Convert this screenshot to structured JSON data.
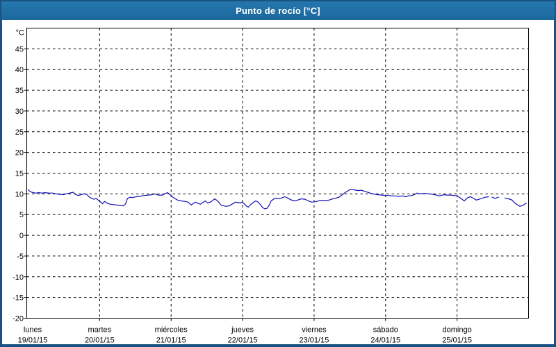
{
  "window": {
    "title": "Punto de rocío [°C]"
  },
  "colors": {
    "frame": "#1A5282",
    "titlebar": "#1E6CA2",
    "title_text": "#FFFFFF",
    "plot_background": "#FFFFFF",
    "axis": "#000000",
    "grid": "#000000",
    "line": "#1212B4"
  },
  "chart_data": {
    "type": "line",
    "title": "Punto de rocío [°C]",
    "ylabel": "°C",
    "ylim": [
      -20,
      50
    ],
    "y_ticks": [
      45,
      40,
      35,
      30,
      25,
      20,
      15,
      10,
      5,
      0,
      -5,
      -10,
      -15,
      -20
    ],
    "grid": "dashed",
    "legend_position": "none",
    "x_days": [
      {
        "name": "lunes",
        "date": "19/01/15"
      },
      {
        "name": "martes",
        "date": "20/01/15"
      },
      {
        "name": "miércoles",
        "date": "21/01/15"
      },
      {
        "name": "jueves",
        "date": "22/01/15"
      },
      {
        "name": "viernes",
        "date": "23/01/15"
      },
      {
        "name": "sábado",
        "date": "24/01/15"
      },
      {
        "name": "domingo",
        "date": "25/01/15"
      }
    ],
    "series": [
      {
        "name": "Punto de rocío",
        "unit": "°C",
        "x_unit": "days since 19/01/15 00:00",
        "color": "#1212B4",
        "segments": [
          [
            [
              0,
              11
            ],
            [
              0.01,
              10.8
            ],
            [
              0.05,
              10.4
            ],
            [
              0.1,
              10.2
            ],
            [
              0.15,
              10.3
            ],
            [
              0.19,
              10.2
            ],
            [
              0.24,
              10.3
            ],
            [
              0.29,
              10.2
            ],
            [
              0.34,
              10.2
            ],
            [
              0.39,
              10
            ],
            [
              0.44,
              9.9
            ],
            [
              0.49,
              9.8
            ],
            [
              0.53,
              10
            ],
            [
              0.58,
              10.2
            ],
            [
              0.63,
              10.4
            ],
            [
              0.66,
              9.9
            ],
            [
              0.7,
              9.6
            ],
            [
              0.74,
              9.8
            ],
            [
              0.78,
              10
            ],
            [
              0.82,
              9.9
            ],
            [
              0.85,
              9.3
            ],
            [
              0.88,
              9
            ],
            [
              0.92,
              8.7
            ],
            [
              0.95,
              8.9
            ],
            [
              0.98,
              8.5
            ],
            [
              1.01,
              8.1
            ],
            [
              1.04,
              7.6
            ],
            [
              1.07,
              8.2
            ],
            [
              1.1,
              7.8
            ],
            [
              1.15,
              7.5
            ],
            [
              1.2,
              7.4
            ],
            [
              1.24,
              7.3
            ],
            [
              1.29,
              7.2
            ],
            [
              1.33,
              7.1
            ],
            [
              1.36,
              7.5
            ],
            [
              1.39,
              8.9
            ],
            [
              1.43,
              9.2
            ],
            [
              1.46,
              9.1
            ],
            [
              1.51,
              9.3
            ],
            [
              1.56,
              9.4
            ],
            [
              1.62,
              9.6
            ],
            [
              1.68,
              9.7
            ],
            [
              1.73,
              9.8
            ],
            [
              1.77,
              10
            ],
            [
              1.82,
              9.7
            ],
            [
              1.88,
              9.7
            ],
            [
              1.92,
              10.1
            ],
            [
              1.95,
              10.3
            ],
            [
              1.98,
              9.9
            ],
            [
              2.01,
              9.4
            ],
            [
              2.04,
              9
            ],
            [
              2.09,
              8.5
            ],
            [
              2.14,
              8.3
            ],
            [
              2.19,
              8.2
            ],
            [
              2.24,
              8
            ],
            [
              2.28,
              7.3
            ],
            [
              2.31,
              7.7
            ],
            [
              2.34,
              8
            ],
            [
              2.38,
              7.7
            ],
            [
              2.41,
              7.5
            ],
            [
              2.44,
              7.9
            ],
            [
              2.48,
              8.3
            ],
            [
              2.51,
              7.8
            ],
            [
              2.56,
              8.1
            ],
            [
              2.61,
              8.8
            ],
            [
              2.65,
              8.3
            ],
            [
              2.7,
              7.3
            ],
            [
              2.74,
              7.1
            ],
            [
              2.77,
              7
            ],
            [
              2.81,
              7.1
            ],
            [
              2.85,
              7.5
            ],
            [
              2.9,
              8
            ],
            [
              2.94,
              7.9
            ],
            [
              2.97,
              7.8
            ],
            [
              2.99,
              8
            ],
            [
              3.02,
              7.7
            ],
            [
              3.05,
              7.1
            ],
            [
              3.08,
              6.8
            ],
            [
              3.11,
              7.4
            ],
            [
              3.15,
              7.9
            ],
            [
              3.18,
              8.3
            ],
            [
              3.21,
              8.1
            ],
            [
              3.25,
              7.4
            ],
            [
              3.28,
              6.7
            ],
            [
              3.31,
              6.4
            ],
            [
              3.34,
              6.5
            ],
            [
              3.37,
              7.2
            ],
            [
              3.4,
              8.3
            ],
            [
              3.44,
              8.8
            ],
            [
              3.48,
              8.9
            ],
            [
              3.52,
              8.8
            ],
            [
              3.56,
              9.1
            ],
            [
              3.59,
              9.3
            ],
            [
              3.63,
              9
            ],
            [
              3.67,
              8.6
            ],
            [
              3.72,
              8.3
            ],
            [
              3.77,
              8.5
            ],
            [
              3.82,
              8.8
            ],
            [
              3.87,
              8.7
            ],
            [
              3.92,
              8.3
            ],
            [
              3.97,
              8
            ],
            [
              4.02,
              8.1
            ],
            [
              4.06,
              8.3
            ],
            [
              4.11,
              8.4
            ],
            [
              4.16,
              8.4
            ],
            [
              4.21,
              8.5
            ],
            [
              4.26,
              8.8
            ],
            [
              4.31,
              9
            ],
            [
              4.36,
              9.3
            ],
            [
              4.4,
              9.9
            ],
            [
              4.45,
              10.5
            ],
            [
              4.5,
              11
            ],
            [
              4.54,
              11.1
            ],
            [
              4.58,
              10.9
            ],
            [
              4.62,
              10.8
            ],
            [
              4.66,
              10.9
            ],
            [
              4.71,
              10.6
            ],
            [
              4.75,
              10.4
            ],
            [
              4.8,
              10.1
            ],
            [
              4.85,
              9.9
            ],
            [
              4.9,
              9.8
            ],
            [
              4.95,
              9.7
            ],
            [
              5,
              9.6
            ],
            [
              5.05,
              9.6
            ],
            [
              5.09,
              9.5
            ],
            [
              5.14,
              9.5
            ],
            [
              5.19,
              9.4
            ],
            [
              5.24,
              9.5
            ],
            [
              5.28,
              9.3
            ],
            [
              5.32,
              9.5
            ],
            [
              5.37,
              9.6
            ],
            [
              5.41,
              9.9
            ],
            [
              5.44,
              10.2
            ],
            [
              5.47,
              10
            ],
            [
              5.51,
              10.1
            ],
            [
              5.56,
              10.1
            ],
            [
              5.61,
              10
            ],
            [
              5.66,
              9.9
            ],
            [
              5.71,
              9.7
            ],
            [
              5.75,
              9.5
            ],
            [
              5.78,
              9.6
            ],
            [
              5.81,
              9.8
            ],
            [
              5.86,
              9.7
            ],
            [
              5.91,
              9.7
            ],
            [
              5.96,
              9.6
            ],
            [
              6,
              9.5
            ],
            [
              6.03,
              9.2
            ],
            [
              6.07,
              8.7
            ],
            [
              6.1,
              8.3
            ],
            [
              6.12,
              8.6
            ],
            [
              6.15,
              9.1
            ],
            [
              6.19,
              9.3
            ],
            [
              6.23,
              8.9
            ],
            [
              6.27,
              8.5
            ],
            [
              6.31,
              8.7
            ],
            [
              6.36,
              9
            ],
            [
              6.4,
              9.2
            ],
            [
              6.44,
              9.3
            ]
          ],
          [
            [
              6.49,
              9.2
            ],
            [
              6.53,
              8.9
            ],
            [
              6.58,
              9.2
            ]
          ],
          [
            [
              6.67,
              9
            ],
            [
              6.72,
              8.8
            ],
            [
              6.77,
              8.5
            ],
            [
              6.8,
              7.9
            ],
            [
              6.84,
              7.4
            ],
            [
              6.88,
              7
            ],
            [
              6.92,
              7.2
            ],
            [
              6.97,
              7.8
            ]
          ]
        ]
      }
    ]
  }
}
